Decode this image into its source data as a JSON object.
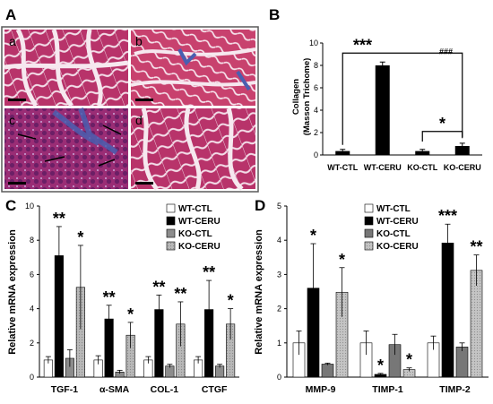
{
  "panels": {
    "A": "A",
    "B": "B",
    "C": "C",
    "D": "D"
  },
  "micrographs": {
    "labels": [
      "a",
      "b",
      "c",
      "d"
    ],
    "colors": {
      "tissue": "#c03a6a",
      "tissue_dark": "#8a1f55",
      "background": "#f4e6ee",
      "fibrosis": "#4a5fb0",
      "border": "#5a5a5a"
    }
  },
  "chart_data": [
    {
      "id": "B",
      "type": "bar",
      "categories": [
        "WT-CTL",
        "WT-CERU",
        "KO-CTL",
        "KO-CERU"
      ],
      "values": [
        0.35,
        8.0,
        0.35,
        0.8
      ],
      "errors": [
        0.15,
        0.3,
        0.15,
        0.25
      ],
      "ylabel_line1": "Collagen",
      "ylabel_line2": "(Masson Trichome)",
      "ylim": [
        0,
        10
      ],
      "yticks": [
        "0",
        "2",
        "4",
        "6",
        "8",
        "10"
      ],
      "bar_color": "#000000",
      "annotations": {
        "bracket_left": "***",
        "bracket_right": "###",
        "ko_bracket": "*"
      }
    },
    {
      "id": "C",
      "type": "bar",
      "categories": [
        "TGF-1",
        "α-SMA",
        "COL-1",
        "CTGF"
      ],
      "series": [
        {
          "name": "WT-CTL",
          "values": [
            1.0,
            1.0,
            1.0,
            1.0
          ],
          "errors": [
            0.2,
            0.25,
            0.2,
            0.2
          ],
          "sig": [
            "",
            "",
            "",
            ""
          ]
        },
        {
          "name": "WT-CERU",
          "values": [
            7.1,
            3.4,
            3.95,
            3.95
          ],
          "errors": [
            1.7,
            0.8,
            0.85,
            1.7
          ],
          "sig": [
            "**",
            "**",
            "**",
            "**"
          ]
        },
        {
          "name": "KO-CTL",
          "values": [
            1.1,
            0.3,
            0.65,
            0.65
          ],
          "errors": [
            0.5,
            0.1,
            0.1,
            0.1
          ],
          "sig": [
            "",
            "",
            "",
            ""
          ]
        },
        {
          "name": "KO-CERU",
          "values": [
            5.25,
            2.45,
            3.1,
            3.1
          ],
          "errors": [
            2.45,
            0.75,
            1.3,
            0.9
          ],
          "sig": [
            "*",
            "*",
            "**",
            "*"
          ]
        }
      ],
      "ylabel": "Relative mRNA expression",
      "ylim": [
        0,
        10
      ],
      "yticks": [
        "0",
        "2",
        "4",
        "6",
        "8",
        "10"
      ],
      "legend_position": "top-right"
    },
    {
      "id": "D",
      "type": "bar",
      "categories": [
        "MMP-9",
        "TIMP-1",
        "TIMP-2"
      ],
      "series": [
        {
          "name": "WT-CTL",
          "values": [
            1.0,
            1.0,
            1.0
          ],
          "errors": [
            0.35,
            0.35,
            0.2
          ],
          "sig": [
            "",
            "",
            ""
          ]
        },
        {
          "name": "WT-CERU",
          "values": [
            2.6,
            0.08,
            3.92
          ],
          "errors": [
            1.3,
            0.03,
            0.55
          ],
          "sig": [
            "*",
            "*",
            "***"
          ]
        },
        {
          "name": "KO-CTL",
          "values": [
            0.38,
            0.95,
            0.88
          ],
          "errors": [
            0.03,
            0.3,
            0.12
          ],
          "sig": [
            "",
            "",
            ""
          ]
        },
        {
          "name": "KO-CERU",
          "values": [
            2.48,
            0.22,
            3.12
          ],
          "errors": [
            0.72,
            0.05,
            0.45
          ],
          "sig": [
            "*",
            "*",
            "**"
          ]
        }
      ],
      "ylabel": "Relative mRNA expression",
      "ylim": [
        0,
        5
      ],
      "yticks": [
        "0",
        "1",
        "2",
        "3",
        "4",
        "5"
      ],
      "legend_position": "top-right"
    }
  ],
  "series_colors": {
    "WT-CTL": "#ffffff",
    "WT-CERU": "#000000",
    "KO-CTL": "#8c8c8c",
    "KO-CERU": "#b4b4b4"
  },
  "series_colors_D": {
    "WT-CTL": "#ffffff",
    "WT-CERU": "#000000",
    "KO-CTL": "#777777",
    "KO-CERU": "#b8b8b8"
  }
}
